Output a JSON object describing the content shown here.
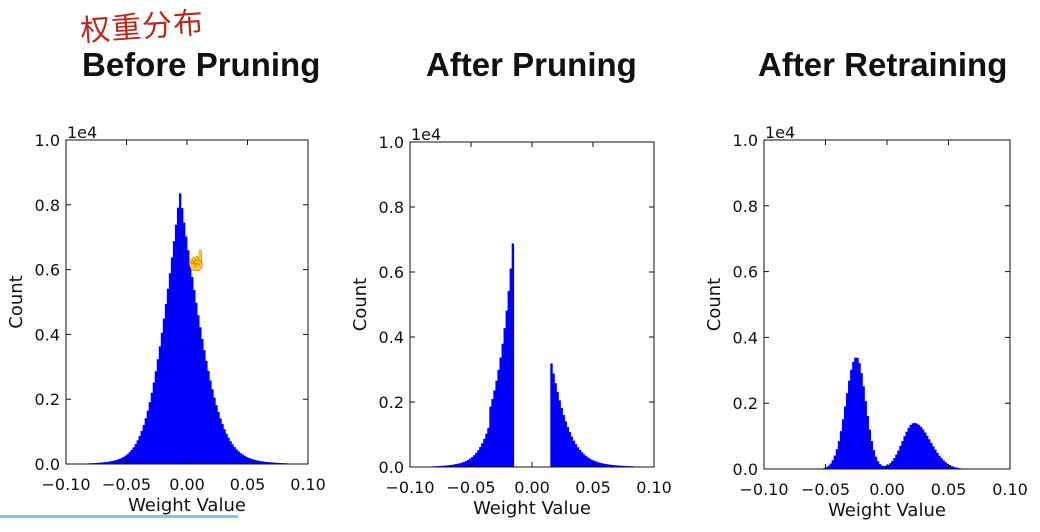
{
  "annotation": "权重分布",
  "bar_color": "#0000ff",
  "chart_data": [
    {
      "type": "histogram",
      "title": "Before Pruning",
      "xlabel": "Weight Value",
      "ylabel": "Count",
      "scale_label": "1e4",
      "xlim": [
        -0.1,
        0.1
      ],
      "ylim": [
        0.0,
        1.0
      ],
      "xticks": [
        -0.1,
        -0.05,
        0.0,
        0.05,
        0.1
      ],
      "xtick_labels": [
        "−0.10",
        "−0.05",
        "0.00",
        "0.05",
        "0.10"
      ],
      "yticks": [
        0.0,
        0.2,
        0.4,
        0.6,
        0.8,
        1.0
      ],
      "ytick_labels": [
        "0.0",
        "0.2",
        "0.4",
        "0.6",
        "0.8",
        "1.0"
      ],
      "distribution": [
        {
          "shape": "laplace_gauss",
          "center": -0.006,
          "peak": 0.84,
          "width_left": 0.016,
          "width_right": 0.019
        }
      ],
      "gap": null
    },
    {
      "type": "histogram",
      "title": "After Pruning",
      "xlabel": "Weight Value",
      "ylabel": "Count",
      "scale_label": "1e4",
      "xlim": [
        -0.1,
        0.1
      ],
      "ylim": [
        0.0,
        1.0
      ],
      "xticks": [
        -0.1,
        -0.05,
        0.0,
        0.05,
        0.1
      ],
      "xtick_labels": [
        "−0.10",
        "−0.05",
        "0.00",
        "0.05",
        "0.10"
      ],
      "yticks": [
        0.0,
        0.2,
        0.4,
        0.6,
        0.8,
        1.0
      ],
      "ytick_labels": [
        "0.0",
        "0.2",
        "0.4",
        "0.6",
        "0.8",
        "1.0"
      ],
      "distribution": [
        {
          "shape": "laplace_gauss",
          "center": -0.006,
          "peak": 0.84,
          "width_left": 0.016,
          "width_right": 0.019
        }
      ],
      "gap": [
        -0.015,
        0.015
      ],
      "left_edge_peak": 0.73,
      "right_edge_peak": 0.36
    },
    {
      "type": "histogram",
      "title": "After Retraining",
      "xlabel": "Weight Value",
      "ylabel": "Count",
      "scale_label": "1e4",
      "xlim": [
        -0.1,
        0.1
      ],
      "ylim": [
        0.0,
        1.0
      ],
      "xticks": [
        -0.1,
        -0.05,
        0.0,
        0.05,
        0.1
      ],
      "xtick_labels": [
        "−0.10",
        "−0.05",
        "0.00",
        "0.05",
        "0.10"
      ],
      "yticks": [
        0.0,
        0.2,
        0.4,
        0.6,
        0.8,
        1.0
      ],
      "ytick_labels": [
        "0.0",
        "0.2",
        "0.4",
        "0.6",
        "0.8",
        "1.0"
      ],
      "distribution": [
        {
          "shape": "gauss",
          "center": -0.025,
          "peak": 0.34,
          "width_left": 0.0085,
          "width_right": 0.0075
        },
        {
          "shape": "gauss",
          "center": 0.022,
          "peak": 0.14,
          "width_left": 0.0095,
          "width_right": 0.013
        }
      ],
      "gap": null
    }
  ]
}
